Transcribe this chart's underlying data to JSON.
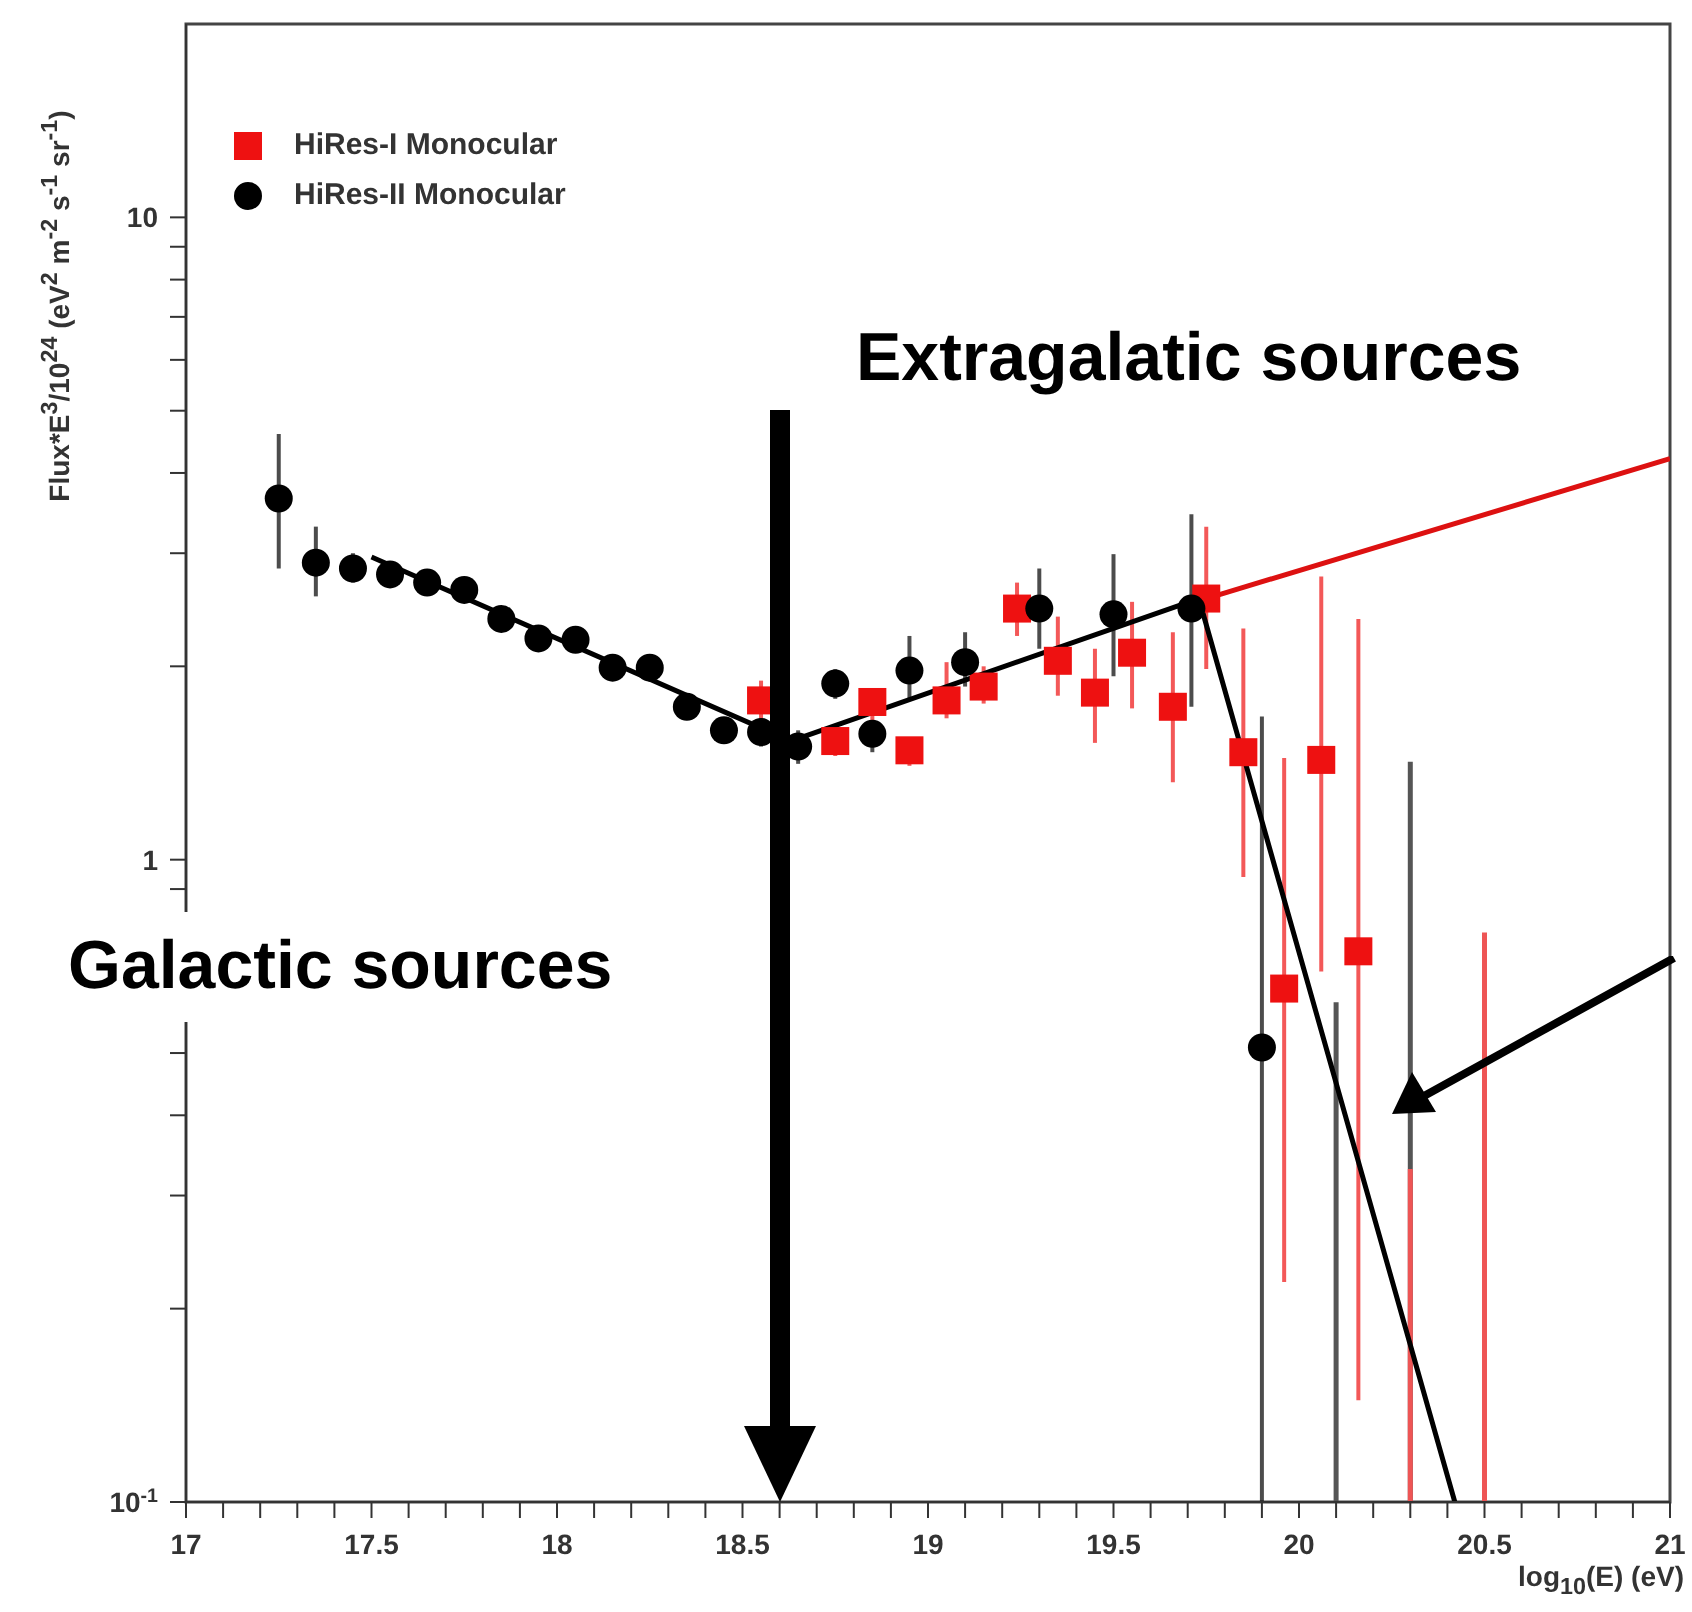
{
  "chart_data": {
    "type": "scatter",
    "xlabel": "log$_{10}$(E) (eV)",
    "ylabel": "Flux*E$^{3}$/10$^{24}$ (eV$^{2}$ m$^{-2}$ s$^{-1}$ sr$^{-1}$)",
    "log": "y",
    "xlim": [
      17,
      21
    ],
    "ylim": [
      0.1,
      20
    ],
    "xticks": [
      17,
      {
        "value": 17.1,
        "label": null
      },
      {
        "value": 17.2,
        "label": null
      },
      {
        "value": 17.3,
        "label": null
      },
      {
        "value": 17.4,
        "label": null
      },
      17.5,
      {
        "value": 17.6,
        "label": null
      },
      {
        "value": 17.7,
        "label": null
      },
      {
        "value": 17.8,
        "label": null
      },
      {
        "value": 17.9,
        "label": null
      },
      18,
      {
        "value": 18.1,
        "label": null
      },
      {
        "value": 18.2,
        "label": null
      },
      {
        "value": 18.3,
        "label": null
      },
      {
        "value": 18.4,
        "label": null
      },
      18.5,
      {
        "value": 18.6,
        "label": null
      },
      {
        "value": 18.7,
        "label": null
      },
      {
        "value": 18.8,
        "label": null
      },
      {
        "value": 18.9,
        "label": null
      },
      19,
      {
        "value": 19.1,
        "label": null
      },
      {
        "value": 19.2,
        "label": null
      },
      {
        "value": 19.3,
        "label": null
      },
      {
        "value": 19.4,
        "label": null
      },
      19.5,
      {
        "value": 19.6,
        "label": null
      },
      {
        "value": 19.7,
        "label": null
      },
      {
        "value": 19.8,
        "label": null
      },
      {
        "value": 19.9,
        "label": null
      },
      20,
      {
        "value": 20.1,
        "label": null
      },
      {
        "value": 20.2,
        "label": null
      },
      {
        "value": 20.3,
        "label": null
      },
      {
        "value": 20.4,
        "label": null
      },
      20.5,
      {
        "value": 20.6,
        "label": null
      },
      {
        "value": 20.7,
        "label": null
      },
      {
        "value": 20.8,
        "label": null
      },
      {
        "value": 20.9,
        "label": null
      },
      21
    ],
    "yticks": [
      {
        "value": 0.1,
        "label": "10$^{-1}$"
      },
      {
        "value": 0.2,
        "label": null
      },
      {
        "value": 0.3,
        "label": null
      },
      {
        "value": 0.4,
        "label": null
      },
      {
        "value": 0.5,
        "label": null
      },
      {
        "value": 0.6,
        "label": null
      },
      {
        "value": 0.7,
        "label": null
      },
      {
        "value": 0.8,
        "label": null
      },
      {
        "value": 0.9,
        "label": null
      },
      1,
      {
        "value": 2,
        "label": null
      },
      {
        "value": 3,
        "label": null
      },
      {
        "value": 4,
        "label": null
      },
      {
        "value": 5,
        "label": null
      },
      {
        "value": 6,
        "label": null
      },
      {
        "value": 7,
        "label": null
      },
      {
        "value": 8,
        "label": null
      },
      {
        "value": 9,
        "label": null
      },
      10
    ],
    "legend": "top left",
    "annotations": [
      "Extragalatic sources",
      "Galactic sources"
    ],
    "series": [
      {
        "name": "HiRes-I Monocular",
        "color": "#ee1111",
        "marker": "square",
        "x": [
          18.55,
          18.75,
          18.85,
          18.95,
          19.05,
          19.15,
          19.24,
          19.35,
          19.45,
          19.55,
          19.66,
          19.75,
          19.85,
          19.96,
          20.06,
          20.16
        ],
        "values": [
          1.77,
          1.53,
          1.76,
          1.48,
          1.77,
          1.86,
          2.46,
          2.04,
          1.82,
          2.1,
          1.73,
          2.55,
          1.47,
          0.63,
          1.43,
          0.72
        ],
        "errors": [
          [
            1.65,
            1.9
          ],
          [
            1.45,
            1.6
          ],
          [
            1.65,
            1.85
          ],
          [
            1.4,
            1.55
          ],
          [
            1.66,
            2.03
          ],
          [
            1.75,
            2.0
          ],
          [
            2.23,
            2.7
          ],
          [
            1.8,
            2.39
          ],
          [
            1.52,
            2.13
          ],
          [
            1.72,
            2.52
          ],
          [
            1.32,
            2.26
          ],
          [
            1.98,
            3.3
          ],
          [
            0.94,
            2.29
          ],
          [
            0.22,
            1.44
          ],
          [
            0.67,
            2.76
          ],
          [
            0.144,
            2.37
          ]
        ]
      },
      {
        "name": "HiRes-II Monocular",
        "color": "#000000",
        "marker": "circle",
        "x": [
          17.25,
          17.35,
          17.45,
          17.55,
          17.65,
          17.75,
          17.85,
          17.95,
          18.05,
          18.15,
          18.25,
          18.35,
          18.45,
          18.55,
          18.65,
          18.75,
          18.85,
          18.95,
          19.1,
          19.3,
          19.5,
          19.71,
          19.9
        ],
        "values": [
          3.65,
          2.9,
          2.84,
          2.78,
          2.7,
          2.63,
          2.37,
          2.21,
          2.2,
          1.99,
          1.99,
          1.73,
          1.59,
          1.58,
          1.5,
          1.88,
          1.57,
          1.97,
          2.03,
          2.46,
          2.41,
          2.46,
          0.51
        ],
        "errors": [
          [
            2.84,
            4.6
          ],
          [
            2.57,
            3.3
          ],
          [
            2.7,
            3.0
          ],
          [
            2.68,
            2.88
          ],
          [
            2.6,
            2.8
          ],
          [
            2.53,
            2.73
          ],
          [
            2.28,
            2.46
          ],
          [
            2.13,
            2.29
          ],
          [
            2.12,
            2.28
          ],
          [
            1.92,
            2.06
          ],
          [
            1.92,
            2.06
          ],
          [
            1.66,
            1.8
          ],
          [
            1.52,
            1.66
          ],
          [
            1.5,
            1.66
          ],
          [
            1.41,
            1.59
          ],
          [
            1.78,
            1.98
          ],
          [
            1.47,
            1.65
          ],
          [
            1.78,
            2.23
          ],
          [
            1.86,
            2.26
          ],
          [
            2.13,
            2.84
          ],
          [
            1.93,
            2.99
          ],
          [
            1.73,
            3.45
          ],
          [
            0.1,
            1.67
          ]
        ]
      },
      {
        "type": "line",
        "color": "#555555",
        "marker": "none",
        "x": [
          20.1,
          20.1
        ],
        "values": [
          0.1,
          0.6
        ]
      },
      {
        "type": "line",
        "color": "#555555",
        "marker": "none",
        "x": [
          20.3,
          20.3
        ],
        "values": [
          0.1,
          1.42
        ]
      },
      {
        "type": "line",
        "color": "#ee5555",
        "marker": "none",
        "x": [
          20.3,
          20.3
        ],
        "values": [
          0.1,
          0.33
        ]
      },
      {
        "type": "line",
        "color": "#ee5555",
        "marker": "none",
        "x": [
          20.5,
          20.5
        ],
        "values": [
          0.1,
          0.77
        ]
      },
      {
        "type": "line",
        "color": "#000000",
        "marker": "none",
        "x": [
          17.5,
          18.63,
          19.73,
          20.42
        ],
        "values": [
          2.96,
          1.53,
          2.55,
          0.1
        ]
      },
      {
        "type": "line",
        "color": "#dd1111",
        "marker": "none",
        "x": [
          19.75,
          21
        ],
        "values": [
          2.55,
          4.21
        ]
      }
    ]
  }
}
